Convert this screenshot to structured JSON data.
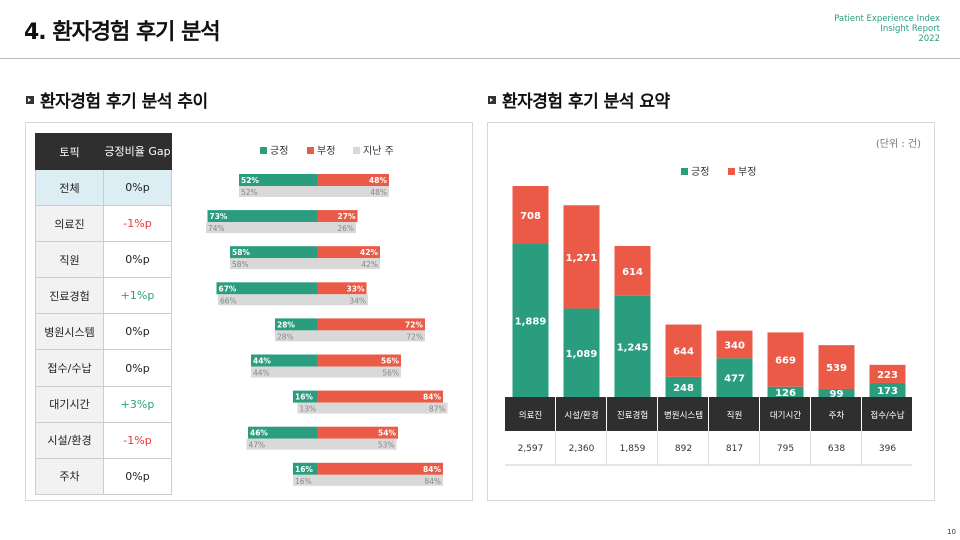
{
  "header": {
    "title": "4. 환자경험 후기 분석",
    "brand_lines": [
      "Patient Experience Index",
      "Insight Report",
      "2022"
    ]
  },
  "left_section": {
    "title": "환자경험 후기 분석 추이",
    "table_headers": [
      "토픽",
      "긍정비율 Gap"
    ],
    "legend": [
      "긍정",
      "부정",
      "지난 주"
    ]
  },
  "right_section": {
    "title": "환자경험 후기 분석 요약",
    "unit": "(단위 : 건)",
    "legend": [
      "긍정",
      "부정"
    ]
  },
  "colors": {
    "positive": "#2a9d7f",
    "negative": "#eb5a46",
    "last_week": "#d9d9d9",
    "header_bg": "#2f2f2f"
  },
  "page_number": "10",
  "chart_data": [
    {
      "type": "bar",
      "orientation": "horizontal-diverging",
      "categories": [
        "전체",
        "의료진",
        "직원",
        "진료경험",
        "병원시스템",
        "접수/수납",
        "대기시간",
        "시설/환경",
        "주차"
      ],
      "gap": [
        "0%p",
        "-1%p",
        "0%p",
        "+1%p",
        "0%p",
        "0%p",
        "+3%p",
        "-1%p",
        "0%p"
      ],
      "series": [
        {
          "name": "긍정",
          "values": [
            52,
            73,
            58,
            67,
            28,
            44,
            16,
            46,
            16
          ]
        },
        {
          "name": "부정",
          "values": [
            48,
            27,
            42,
            33,
            72,
            56,
            84,
            54,
            84
          ]
        },
        {
          "name": "지난 주",
          "positive": [
            52,
            74,
            58,
            66,
            28,
            44,
            13,
            47,
            16
          ],
          "negative": [
            48,
            26,
            42,
            34,
            72,
            56,
            87,
            53,
            84
          ]
        }
      ],
      "unit": "%"
    },
    {
      "type": "bar",
      "orientation": "vertical-stacked",
      "categories": [
        "의료진",
        "시설/환경",
        "진료경험",
        "병원시스템",
        "직원",
        "대기시간",
        "주차",
        "접수/수납"
      ],
      "series": [
        {
          "name": "긍정",
          "values": [
            1889,
            1089,
            1245,
            248,
            477,
            126,
            99,
            173
          ]
        },
        {
          "name": "부정",
          "values": [
            708,
            1271,
            614,
            644,
            340,
            669,
            539,
            223
          ]
        }
      ],
      "value_labels": {
        "positive": [
          "1,889",
          "1,089",
          "1,245",
          "248",
          "477",
          "126",
          "99",
          "173"
        ],
        "negative": [
          "708",
          "1,271",
          "614",
          "644",
          "340",
          "669",
          "539",
          "223"
        ]
      },
      "totals": [
        "2,597",
        "2,360",
        "1,859",
        "892",
        "817",
        "795",
        "638",
        "396"
      ]
    }
  ]
}
